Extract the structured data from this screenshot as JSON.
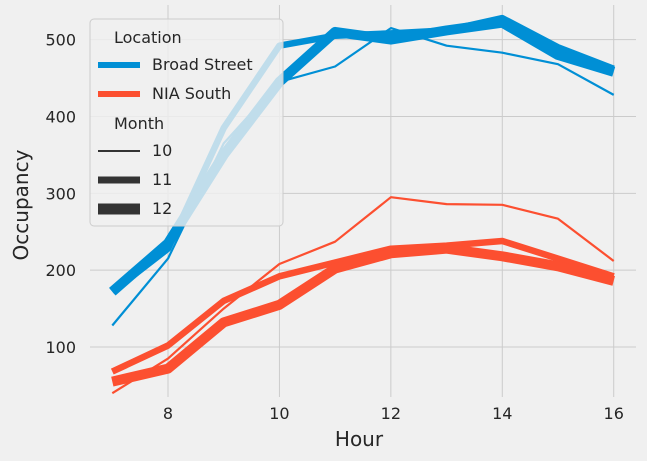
{
  "chart_data": {
    "type": "line",
    "title": "",
    "xlabel": "Hour",
    "ylabel": "Occupancy",
    "xlim": [
      6.6,
      16.4
    ],
    "ylim": [
      35,
      545
    ],
    "xticks": [
      8,
      10,
      12,
      14,
      16
    ],
    "yticks": [
      100,
      200,
      300,
      400,
      500
    ],
    "grid": true,
    "legend_position": "top-left",
    "legend": {
      "hue_title": "Location",
      "hue_entries": [
        {
          "name": "Broad Street",
          "color": "#008fd5"
        },
        {
          "name": "NIA South",
          "color": "#fc4f30"
        }
      ],
      "size_title": "Month",
      "size_entries": [
        "10",
        "11",
        "12"
      ]
    },
    "x": [
      7,
      8,
      9,
      10,
      11,
      12,
      13,
      14,
      15,
      16
    ],
    "series": [
      {
        "location": "Broad Street",
        "month": "10",
        "color": "#008fd5",
        "width": 2.2,
        "values": [
          128,
          215,
          365,
          445,
          465,
          515,
          492,
          483,
          468,
          428
        ]
      },
      {
        "location": "Broad Street",
        "month": "11",
        "color": "#008fd5",
        "width": 6.5,
        "values": [
          172,
          228,
          385,
          492,
          505,
          508,
          512,
          528,
          490,
          462
        ]
      },
      {
        "location": "Broad Street",
        "month": "12",
        "color": "#008fd5",
        "width": 10,
        "values": [
          172,
          235,
          350,
          445,
          510,
          500,
          512,
          522,
          480,
          458
        ]
      },
      {
        "location": "NIA South",
        "month": "10",
        "color": "#fc4f30",
        "width": 2.2,
        "values": [
          40,
          85,
          150,
          208,
          237,
          295,
          286,
          285,
          267,
          212
        ]
      },
      {
        "location": "NIA South",
        "month": "11",
        "color": "#fc4f30",
        "width": 6.5,
        "values": [
          68,
          102,
          160,
          192,
          210,
          228,
          232,
          238,
          215,
          192
        ]
      },
      {
        "location": "NIA South",
        "month": "12",
        "color": "#fc4f30",
        "width": 10,
        "values": [
          55,
          72,
          132,
          155,
          202,
          222,
          228,
          218,
          205,
          186
        ]
      }
    ]
  }
}
